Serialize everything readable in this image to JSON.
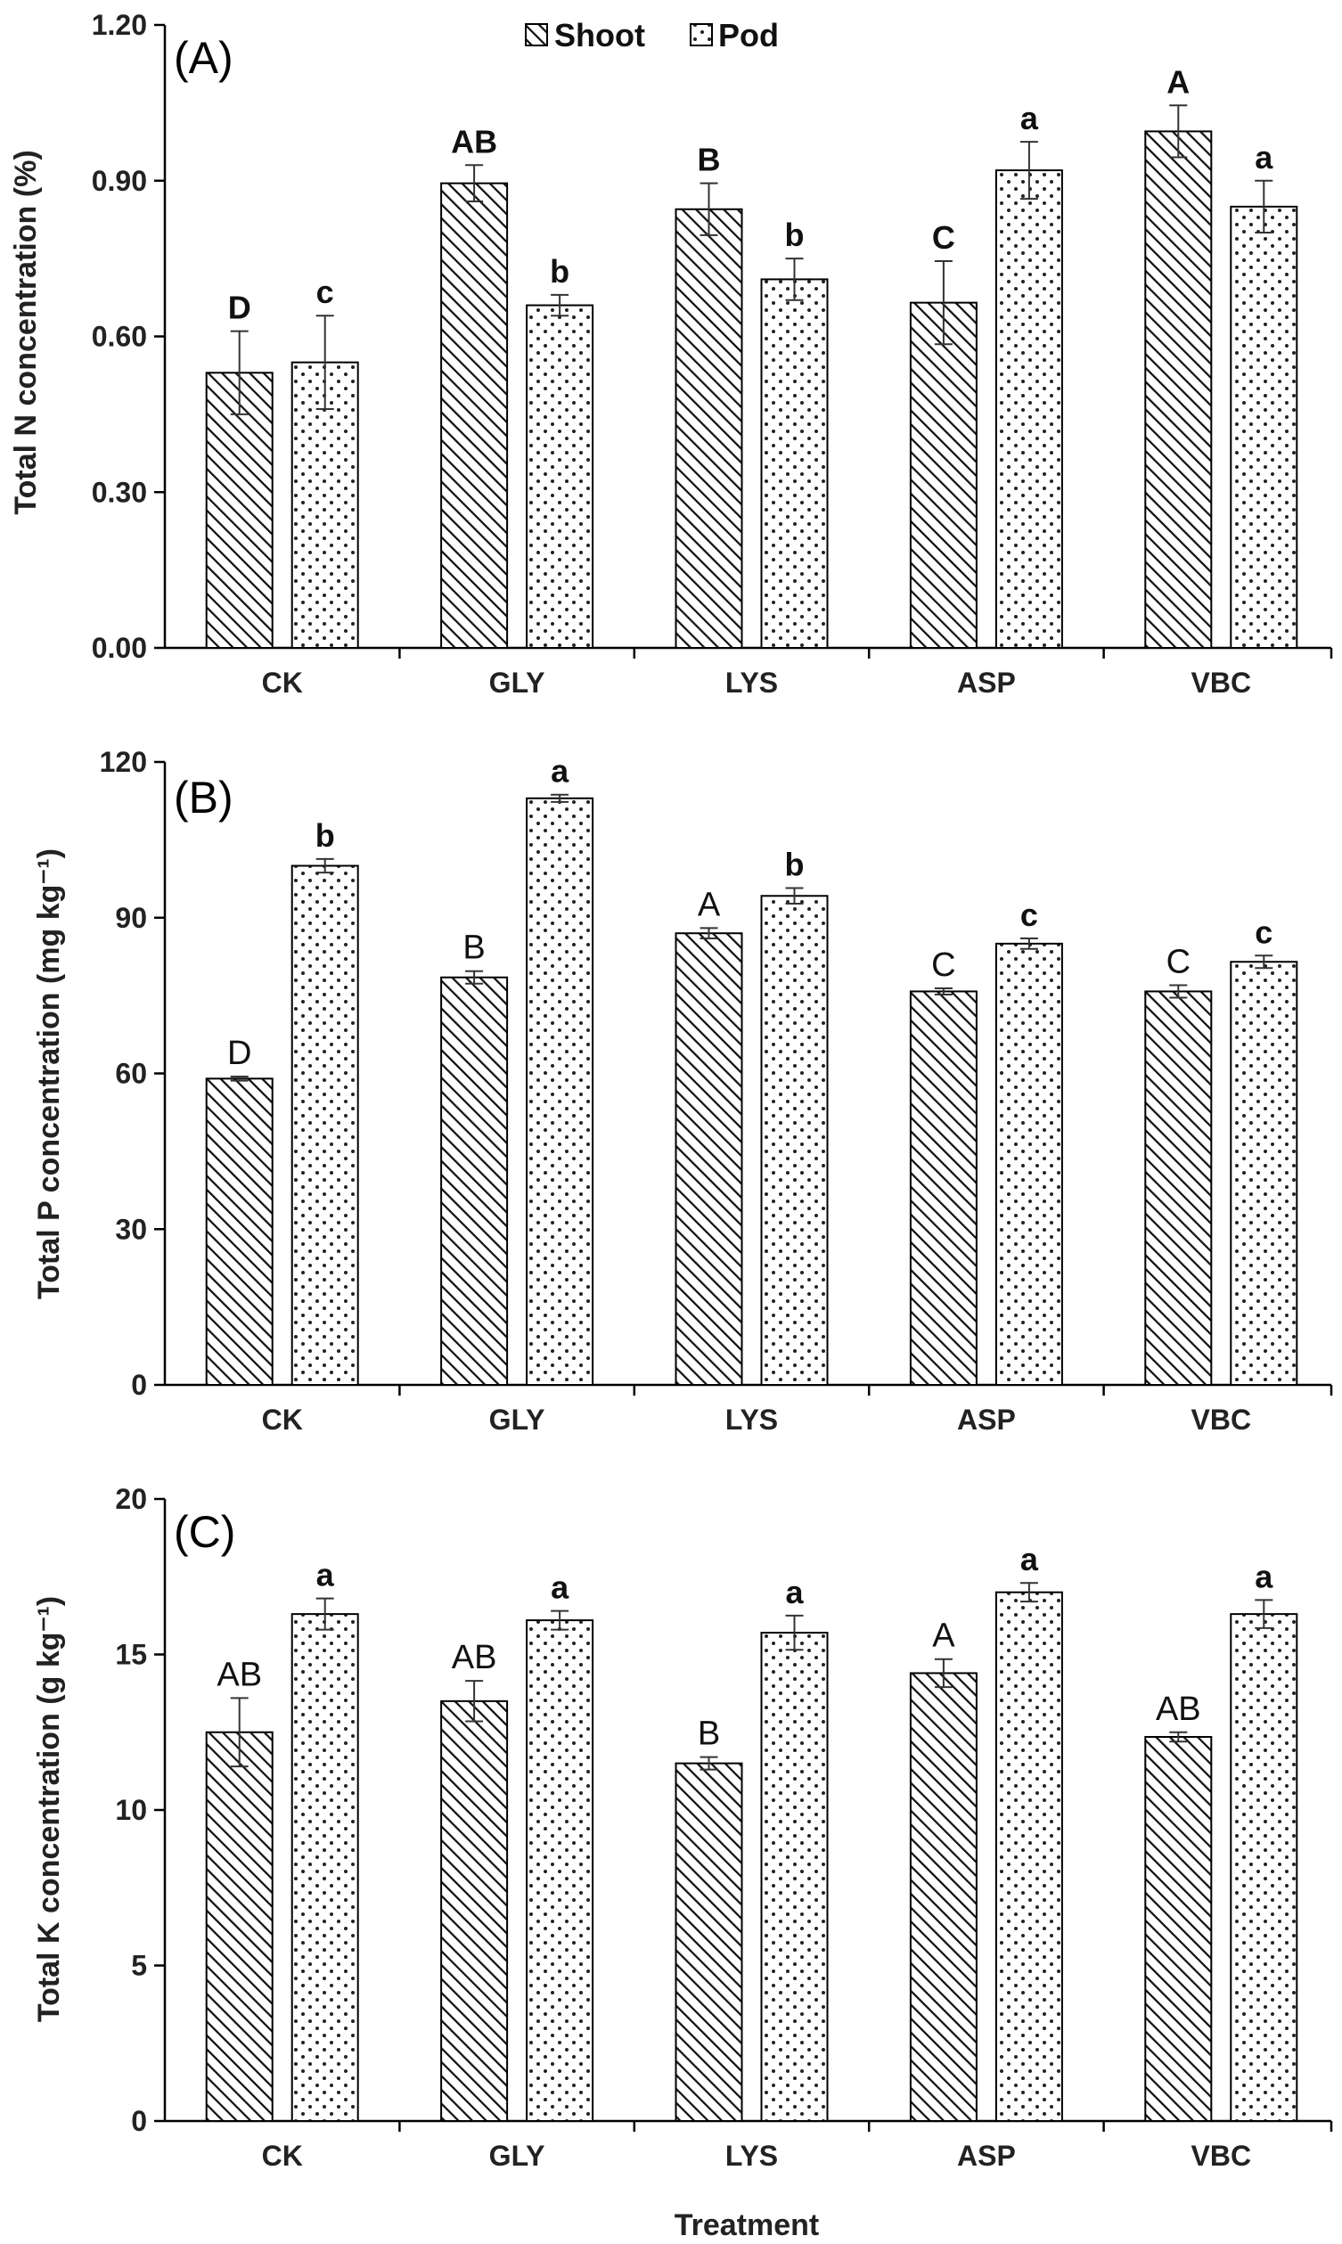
{
  "chart_data": [
    {
      "type": "bar",
      "panel_label": "(A)",
      "categories": [
        "CK",
        "GLY",
        "LYS",
        "ASP",
        "VBC"
      ],
      "ylabel": "Total N concentration (%)",
      "ylim": [
        0,
        1.2
      ],
      "yticks": [
        "0.00",
        "0.30",
        "0.60",
        "0.90",
        "1.20"
      ],
      "ytick_values": [
        0,
        0.3,
        0.6,
        0.9,
        1.2
      ],
      "legend": true,
      "series": [
        {
          "name": "Shoot",
          "values": [
            0.53,
            0.895,
            0.845,
            0.665,
            0.995
          ],
          "errors": [
            0.08,
            0.035,
            0.05,
            0.08,
            0.05
          ],
          "letters": [
            "D",
            "AB",
            "B",
            "C",
            "A"
          ]
        },
        {
          "name": "Pod",
          "values": [
            0.55,
            0.66,
            0.71,
            0.92,
            0.85
          ],
          "errors": [
            0.09,
            0.02,
            0.04,
            0.055,
            0.05
          ],
          "letters": [
            "c",
            "b",
            "b",
            "a",
            "a"
          ]
        }
      ]
    },
    {
      "type": "bar",
      "panel_label": "(B)",
      "categories": [
        "CK",
        "GLY",
        "LYS",
        "ASP",
        "VBC"
      ],
      "ylabel": "Total P concentration (mg kg⁻¹)",
      "ylim": [
        0,
        120
      ],
      "yticks": [
        "0",
        "30",
        "60",
        "90",
        "120"
      ],
      "ytick_values": [
        0,
        30,
        60,
        90,
        120
      ],
      "legend": false,
      "series": [
        {
          "name": "Shoot",
          "values": [
            59,
            78.5,
            87,
            75.8,
            75.8
          ],
          "errors": [
            0.4,
            1.2,
            1.0,
            0.6,
            1.2
          ],
          "letters": [
            "D",
            "B",
            "A",
            "C",
            "C"
          ]
        },
        {
          "name": "Pod",
          "values": [
            100,
            113,
            94.2,
            85,
            81.5
          ],
          "errors": [
            1.3,
            0.7,
            1.5,
            1.0,
            1.2
          ],
          "letters": [
            "b",
            "a",
            "b",
            "c",
            "c"
          ]
        }
      ]
    },
    {
      "type": "bar",
      "panel_label": "(C)",
      "categories": [
        "CK",
        "GLY",
        "LYS",
        "ASP",
        "VBC"
      ],
      "ylabel": "Total K concentration (g kg⁻¹)",
      "xlabel": "Treatment",
      "ylim": [
        0,
        20
      ],
      "yticks": [
        "0",
        "5",
        "10",
        "15",
        "20"
      ],
      "ytick_values": [
        0,
        5,
        10,
        15,
        20
      ],
      "legend": false,
      "series": [
        {
          "name": "Shoot",
          "values": [
            12.5,
            13.5,
            11.5,
            14.4,
            12.35
          ],
          "errors": [
            1.1,
            0.65,
            0.2,
            0.45,
            0.15
          ],
          "letters": [
            "AB",
            "AB",
            "B",
            "A",
            "AB"
          ]
        },
        {
          "name": "Pod",
          "values": [
            16.3,
            16.1,
            15.7,
            17.0,
            16.3
          ],
          "errors": [
            0.5,
            0.3,
            0.55,
            0.3,
            0.45
          ],
          "letters": [
            "a",
            "a",
            "a",
            "a",
            "a"
          ]
        }
      ]
    }
  ],
  "legend": {
    "shoot_label": "Shoot",
    "pod_label": "Pod"
  },
  "colors": {
    "bar_fill": "#ffffff",
    "stroke": "#000000",
    "text": "#111111"
  }
}
